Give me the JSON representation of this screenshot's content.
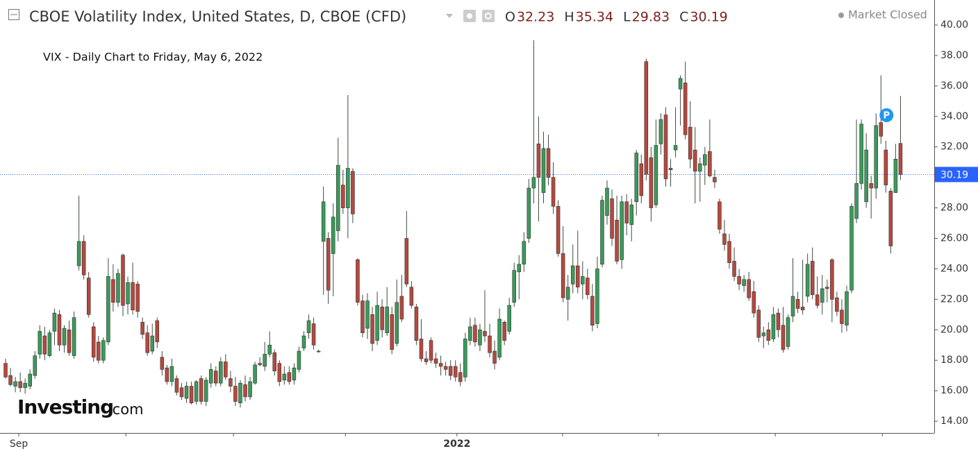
{
  "chart_data": {
    "type": "candlestick",
    "title": "CBOE Volatility Index, United States, D, CBOE (CFD)",
    "header_labels": [
      "O",
      "H",
      "L",
      "C"
    ],
    "status": "Market Closed",
    "annotation": "VIX - Daily Chart to Friday, May 6, 2022",
    "logo": [
      "Investing",
      ".com"
    ],
    "marker": "P",
    "up_color": "#3b9a5a",
    "down_color": "#b5493f",
    "price_line_color": "#2962ff",
    "ylim": [
      13.23,
      41.64
    ],
    "yticks": [
      {
        "value": 14,
        "label": "14.00"
      },
      {
        "value": 16,
        "label": "16.00"
      },
      {
        "value": 18,
        "label": "18.00"
      },
      {
        "value": 20,
        "label": "20.00"
      },
      {
        "value": 22,
        "label": "22.00"
      },
      {
        "value": 24,
        "label": "24.00"
      },
      {
        "value": 26,
        "label": "26.00"
      },
      {
        "value": 28,
        "label": "28.00"
      },
      {
        "value": 30,
        "label": "30.00"
      },
      {
        "value": 32,
        "label": "32.00"
      },
      {
        "value": 34,
        "label": "34.00"
      },
      {
        "value": 36,
        "label": "36.00"
      },
      {
        "value": 38,
        "label": "38.00"
      },
      {
        "value": 40,
        "label": "40.00"
      }
    ],
    "xlim": [
      -1.14,
      189.9
    ],
    "xticks": [
      {
        "value": 2.7,
        "label": "Sep"
      },
      {
        "value": 92.3,
        "label": "2022"
      }
    ],
    "xminor_ticks": [
      24.6,
      46.6,
      69.5,
      113.9,
      133.5,
      157.4,
      179.3
    ],
    "ohlc": [
      [
        17.8,
        18.1,
        16.8,
        16.9
      ],
      [
        17.0,
        17.5,
        16.3,
        16.4
      ],
      [
        16.3,
        16.9,
        15.9,
        16.6
      ],
      [
        16.6,
        17.2,
        15.9,
        16.2
      ],
      [
        16.2,
        16.8,
        15.8,
        16.5
      ],
      [
        16.3,
        17.4,
        16.1,
        17.1
      ],
      [
        17.0,
        18.6,
        16.8,
        18.3
      ],
      [
        18.4,
        20.3,
        18.1,
        19.9
      ],
      [
        19.6,
        20.2,
        18.0,
        18.4
      ],
      [
        18.3,
        20.0,
        18.2,
        19.8
      ],
      [
        19.9,
        21.4,
        19.0,
        21.1
      ],
      [
        21.0,
        21.3,
        18.6,
        19.0
      ],
      [
        19.0,
        20.3,
        18.5,
        20.1
      ],
      [
        20.0,
        20.6,
        18.3,
        18.5
      ],
      [
        18.3,
        21.2,
        18.1,
        20.8
      ],
      [
        24.2,
        28.8,
        23.9,
        25.8
      ],
      [
        25.8,
        26.2,
        23.3,
        23.6
      ],
      [
        23.4,
        23.8,
        20.8,
        21.0
      ],
      [
        20.2,
        20.5,
        17.9,
        18.2
      ],
      [
        19.2,
        19.6,
        17.8,
        18.0
      ],
      [
        18.0,
        19.5,
        17.8,
        19.3
      ],
      [
        19.2,
        24.7,
        19.0,
        23.5
      ],
      [
        23.3,
        24.3,
        21.2,
        21.8
      ],
      [
        21.8,
        24.0,
        21.5,
        23.7
      ],
      [
        24.9,
        25.0,
        20.9,
        21.6
      ],
      [
        21.7,
        23.5,
        21.0,
        23.1
      ],
      [
        23.1,
        24.4,
        21.0,
        21.3
      ],
      [
        23.0,
        23.2,
        20.8,
        21.2
      ],
      [
        20.5,
        20.8,
        19.4,
        19.7
      ],
      [
        19.8,
        20.3,
        18.3,
        18.5
      ],
      [
        18.6,
        20.4,
        18.4,
        19.6
      ],
      [
        20.6,
        20.8,
        18.8,
        19.2
      ],
      [
        18.2,
        18.6,
        17.0,
        17.4
      ],
      [
        17.5,
        17.7,
        16.4,
        16.6
      ],
      [
        16.6,
        18.1,
        16.3,
        17.6
      ],
      [
        16.8,
        17.0,
        15.7,
        15.9
      ],
      [
        16.2,
        16.5,
        15.4,
        15.6
      ],
      [
        15.5,
        16.6,
        15.2,
        16.3
      ],
      [
        16.3,
        16.6,
        15.1,
        15.2
      ],
      [
        15.3,
        16.7,
        15.1,
        16.6
      ],
      [
        16.8,
        17.0,
        15.1,
        15.3
      ],
      [
        15.3,
        16.9,
        15.0,
        16.7
      ],
      [
        16.5,
        17.8,
        16.2,
        17.4
      ],
      [
        17.3,
        17.6,
        16.3,
        16.5
      ],
      [
        16.5,
        18.2,
        16.3,
        17.9
      ],
      [
        17.9,
        18.4,
        16.7,
        16.9
      ],
      [
        16.8,
        17.3,
        15.9,
        16.3
      ],
      [
        16.3,
        16.9,
        15.0,
        15.3
      ],
      [
        15.2,
        16.7,
        14.9,
        16.5
      ],
      [
        16.4,
        17.0,
        15.3,
        15.6
      ],
      [
        15.6,
        16.9,
        15.4,
        16.6
      ],
      [
        16.5,
        17.9,
        16.4,
        17.7
      ],
      [
        17.8,
        18.2,
        17.6,
        17.7
      ],
      [
        17.6,
        19.2,
        17.3,
        18.4
      ],
      [
        18.4,
        19.9,
        18.2,
        19.0
      ],
      [
        18.5,
        18.7,
        17.0,
        17.3
      ],
      [
        17.8,
        18.0,
        16.3,
        16.6
      ],
      [
        16.7,
        17.6,
        16.4,
        17.1
      ],
      [
        17.2,
        17.6,
        16.4,
        16.6
      ],
      [
        16.7,
        17.8,
        16.4,
        17.5
      ],
      [
        17.4,
        18.9,
        17.2,
        18.6
      ],
      [
        18.8,
        19.9,
        18.6,
        19.6
      ],
      [
        19.8,
        21.0,
        19.4,
        20.6
      ],
      [
        20.4,
        20.8,
        18.7,
        19.0
      ],
      [
        18.6,
        18.7,
        18.5,
        18.6
      ],
      [
        25.8,
        29.4,
        22.3,
        28.4
      ],
      [
        26.0,
        26.4,
        21.7,
        22.6
      ],
      [
        25.0,
        28.3,
        22.2,
        27.4
      ],
      [
        26.5,
        32.6,
        25.8,
        30.8
      ],
      [
        29.5,
        30.5,
        27.6,
        28.0
      ],
      [
        28.0,
        35.4,
        26.0,
        30.6
      ],
      [
        30.4,
        30.6,
        27.0,
        27.6
      ],
      [
        24.6,
        24.7,
        21.6,
        21.8
      ],
      [
        21.9,
        22.3,
        19.5,
        19.8
      ],
      [
        20.1,
        22.4,
        19.4,
        21.9
      ],
      [
        21.0,
        21.5,
        18.6,
        19.1
      ],
      [
        19.3,
        22.5,
        19.0,
        21.6
      ],
      [
        21.5,
        22.0,
        19.5,
        20.0
      ],
      [
        19.8,
        22.8,
        19.6,
        21.5
      ],
      [
        21.0,
        21.5,
        18.4,
        18.7
      ],
      [
        19.1,
        23.3,
        18.9,
        21.8
      ],
      [
        22.2,
        23.6,
        20.5,
        20.7
      ],
      [
        26.0,
        27.8,
        22.8,
        23.0
      ],
      [
        22.8,
        23.2,
        21.4,
        21.6
      ],
      [
        21.5,
        21.7,
        19.0,
        19.3
      ],
      [
        19.4,
        20.7,
        17.9,
        18.1
      ],
      [
        18.1,
        18.6,
        17.7,
        17.9
      ],
      [
        19.3,
        19.5,
        17.8,
        18.0
      ],
      [
        18.1,
        18.5,
        17.5,
        17.8
      ],
      [
        17.8,
        18.3,
        17.0,
        17.6
      ],
      [
        17.6,
        17.9,
        17.0,
        17.4
      ],
      [
        17.6,
        18.0,
        16.7,
        17.0
      ],
      [
        17.6,
        18.0,
        16.6,
        16.9
      ],
      [
        17.2,
        17.8,
        16.3,
        16.6
      ],
      [
        16.9,
        19.8,
        16.6,
        19.4
      ],
      [
        19.3,
        20.8,
        19.0,
        20.2
      ],
      [
        20.3,
        20.8,
        18.9,
        19.2
      ],
      [
        19.0,
        20.4,
        18.6,
        20.0
      ],
      [
        19.9,
        22.6,
        19.2,
        19.6
      ],
      [
        19.6,
        20.4,
        18.2,
        18.5
      ],
      [
        18.6,
        19.3,
        17.4,
        17.8
      ],
      [
        18.2,
        21.4,
        18.0,
        20.7
      ],
      [
        20.5,
        20.6,
        19.0,
        19.3
      ],
      [
        19.9,
        22.1,
        19.7,
        21.6
      ],
      [
        21.8,
        24.4,
        21.5,
        23.9
      ],
      [
        23.8,
        24.9,
        22.0,
        24.3
      ],
      [
        24.3,
        26.4,
        23.8,
        25.8
      ],
      [
        26.0,
        29.9,
        25.7,
        29.3
      ],
      [
        29.3,
        39.0,
        28.3,
        30.0
      ],
      [
        32.2,
        34.0,
        27.1,
        30.0
      ],
      [
        29.0,
        33.0,
        28.3,
        31.9
      ],
      [
        31.9,
        32.8,
        29.5,
        30.0
      ],
      [
        30.0,
        31.0,
        27.6,
        28.1
      ],
      [
        28.1,
        28.5,
        24.8,
        25.0
      ],
      [
        25.0,
        26.8,
        21.8,
        22.1
      ],
      [
        22.0,
        23.6,
        20.6,
        22.8
      ],
      [
        23.0,
        25.6,
        22.4,
        24.2
      ],
      [
        24.2,
        26.5,
        22.4,
        22.8
      ],
      [
        23.0,
        24.5,
        22.0,
        23.5
      ],
      [
        23.4,
        24.0,
        22.0,
        22.3
      ],
      [
        22.2,
        23.0,
        19.9,
        20.3
      ],
      [
        20.4,
        24.8,
        20.1,
        24.0
      ],
      [
        24.3,
        28.8,
        24.1,
        28.5
      ],
      [
        27.5,
        29.8,
        26.9,
        29.3
      ],
      [
        28.6,
        29.2,
        25.5,
        26.0
      ],
      [
        27.2,
        28.8,
        24.3,
        24.5
      ],
      [
        24.6,
        28.8,
        24.0,
        28.4
      ],
      [
        28.4,
        28.9,
        26.2,
        27.0
      ],
      [
        26.9,
        28.6,
        25.8,
        28.2
      ],
      [
        28.4,
        31.8,
        27.5,
        31.6
      ],
      [
        30.9,
        31.5,
        28.3,
        28.8
      ],
      [
        37.6,
        37.8,
        29.8,
        30.2
      ],
      [
        31.3,
        32.0,
        27.1,
        28.0
      ],
      [
        28.2,
        33.8,
        28.0,
        32.1
      ],
      [
        32.2,
        34.2,
        31.5,
        33.8
      ],
      [
        34.1,
        34.6,
        29.4,
        29.9
      ],
      [
        30.6,
        31.2,
        29.4,
        30.5
      ],
      [
        31.8,
        34.6,
        31.3,
        32.1
      ],
      [
        35.8,
        36.7,
        33.4,
        36.5
      ],
      [
        36.2,
        37.6,
        32.5,
        32.8
      ],
      [
        33.3,
        35.0,
        30.6,
        31.2
      ],
      [
        31.8,
        33.3,
        28.3,
        30.4
      ],
      [
        30.4,
        31.3,
        28.4,
        30.9
      ],
      [
        30.8,
        32.0,
        29.5,
        31.5
      ],
      [
        31.7,
        33.8,
        30.0,
        30.1
      ],
      [
        30.0,
        30.5,
        29.3,
        29.7
      ],
      [
        28.4,
        28.6,
        26.3,
        26.6
      ],
      [
        26.3,
        27.2,
        25.2,
        25.6
      ],
      [
        25.8,
        26.3,
        24.0,
        24.4
      ],
      [
        24.5,
        25.4,
        23.2,
        23.5
      ],
      [
        23.5,
        24.0,
        22.6,
        23.0
      ],
      [
        22.9,
        23.6,
        22.5,
        23.3
      ],
      [
        23.3,
        23.8,
        21.9,
        22.1
      ],
      [
        22.5,
        23.2,
        20.8,
        21.1
      ],
      [
        21.3,
        21.6,
        19.2,
        19.5
      ],
      [
        19.6,
        20.2,
        18.8,
        19.8
      ],
      [
        20.0,
        20.5,
        19.0,
        19.3
      ],
      [
        19.4,
        21.5,
        19.2,
        21.0
      ],
      [
        21.1,
        21.4,
        19.5,
        20.0
      ],
      [
        20.3,
        21.5,
        18.5,
        18.7
      ],
      [
        18.9,
        21.0,
        18.7,
        20.8
      ],
      [
        20.9,
        24.7,
        20.5,
        22.2
      ],
      [
        22.0,
        22.5,
        21.1,
        21.4
      ],
      [
        21.5,
        24.6,
        21.0,
        21.3
      ],
      [
        22.2,
        25.0,
        21.8,
        24.3
      ],
      [
        24.5,
        25.4,
        22.0,
        22.3
      ],
      [
        22.3,
        23.5,
        21.4,
        21.6
      ],
      [
        21.8,
        23.6,
        21.0,
        22.7
      ],
      [
        22.8,
        23.3,
        21.8,
        22.7
      ],
      [
        24.6,
        24.7,
        20.5,
        22.0
      ],
      [
        22.1,
        22.5,
        20.9,
        21.2
      ],
      [
        21.3,
        22.0,
        19.8,
        20.4
      ],
      [
        20.3,
        22.9,
        19.9,
        22.5
      ],
      [
        22.6,
        28.3,
        22.4,
        28.1
      ],
      [
        27.3,
        33.8,
        27.0,
        29.6
      ],
      [
        29.6,
        33.8,
        29.2,
        33.5
      ],
      [
        28.4,
        32.9,
        28.0,
        31.8
      ],
      [
        29.6,
        30.1,
        27.3,
        29.3
      ],
      [
        29.3,
        34.2,
        28.6,
        33.4
      ],
      [
        33.6,
        36.7,
        32.2,
        32.7
      ],
      [
        31.8,
        32.4,
        29.0,
        29.5
      ],
      [
        29.1,
        29.3,
        25.0,
        25.5
      ],
      [
        29.0,
        32.2,
        29.0,
        31.2
      ],
      [
        32.23,
        35.34,
        29.83,
        30.19
      ]
    ]
  }
}
